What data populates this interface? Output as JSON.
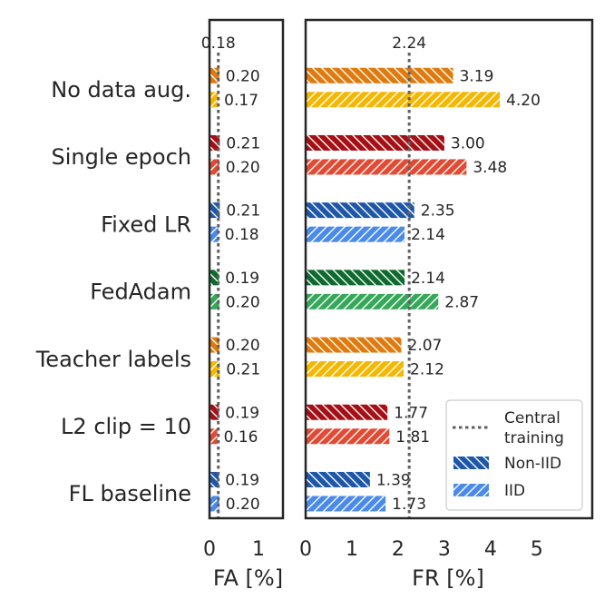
{
  "chart_data": {
    "type": "bar",
    "orientation": "horizontal",
    "categories": [
      "No data aug.",
      "Single epoch",
      "Fixed LR",
      "FedAdam",
      "Teacher labels",
      "L2 clip = 10",
      "FL baseline"
    ],
    "category_colors": [
      {
        "non_iid": "#E07A0C",
        "iid": "#F5B700"
      },
      {
        "non_iid": "#A50F15",
        "iid": "#E34A33"
      },
      {
        "non_iid": "#1F57A8",
        "iid": "#4A8AEA"
      },
      {
        "non_iid": "#0E6A2E",
        "iid": "#36A85A"
      },
      {
        "non_iid": "#E07A0C",
        "iid": "#F5B700"
      },
      {
        "non_iid": "#A50F15",
        "iid": "#E34A33"
      },
      {
        "non_iid": "#1F57A8",
        "iid": "#4A8AEA"
      }
    ],
    "panels": [
      {
        "xlabel": "FA [%]",
        "xlim": [
          0,
          1.5
        ],
        "xticks": [
          "0",
          "1"
        ],
        "reference": {
          "value": 0.18,
          "label": "0.18"
        },
        "non_iid": [
          0.2,
          0.21,
          0.21,
          0.19,
          0.2,
          0.19,
          0.19
        ],
        "iid": [
          0.17,
          0.2,
          0.18,
          0.2,
          0.21,
          0.16,
          0.2
        ],
        "non_iid_labels": [
          "0.20",
          "0.21",
          "0.21",
          "0.19",
          "0.20",
          "0.19",
          "0.19"
        ],
        "iid_labels": [
          "0.17",
          "0.20",
          "0.18",
          "0.20",
          "0.21",
          "0.16",
          "0.20"
        ]
      },
      {
        "xlabel": "FR [%]",
        "xlim": [
          0,
          6.2
        ],
        "xticks": [
          "0",
          "1",
          "2",
          "3",
          "4",
          "5"
        ],
        "reference": {
          "value": 2.24,
          "label": "2.24"
        },
        "non_iid": [
          3.19,
          3.0,
          2.35,
          2.14,
          2.07,
          1.77,
          1.39
        ],
        "iid": [
          4.2,
          3.48,
          2.14,
          2.87,
          2.12,
          1.81,
          1.73
        ],
        "non_iid_labels": [
          "3.19",
          "3.00",
          "2.35",
          "2.14",
          "2.07",
          "1.77",
          "1.39"
        ],
        "iid_labels": [
          "4.20",
          "3.48",
          "2.14",
          "2.87",
          "2.12",
          "1.81",
          "1.73"
        ]
      }
    ],
    "legend": {
      "position": "lower right",
      "entries": [
        {
          "key": "reference",
          "label_line1": "Central",
          "label_line2": "training"
        },
        {
          "key": "non_iid",
          "label": "Non-IID",
          "color": "#1F57A8"
        },
        {
          "key": "iid",
          "label": "IID",
          "color": "#4A8AEA"
        }
      ]
    },
    "grid": false
  }
}
